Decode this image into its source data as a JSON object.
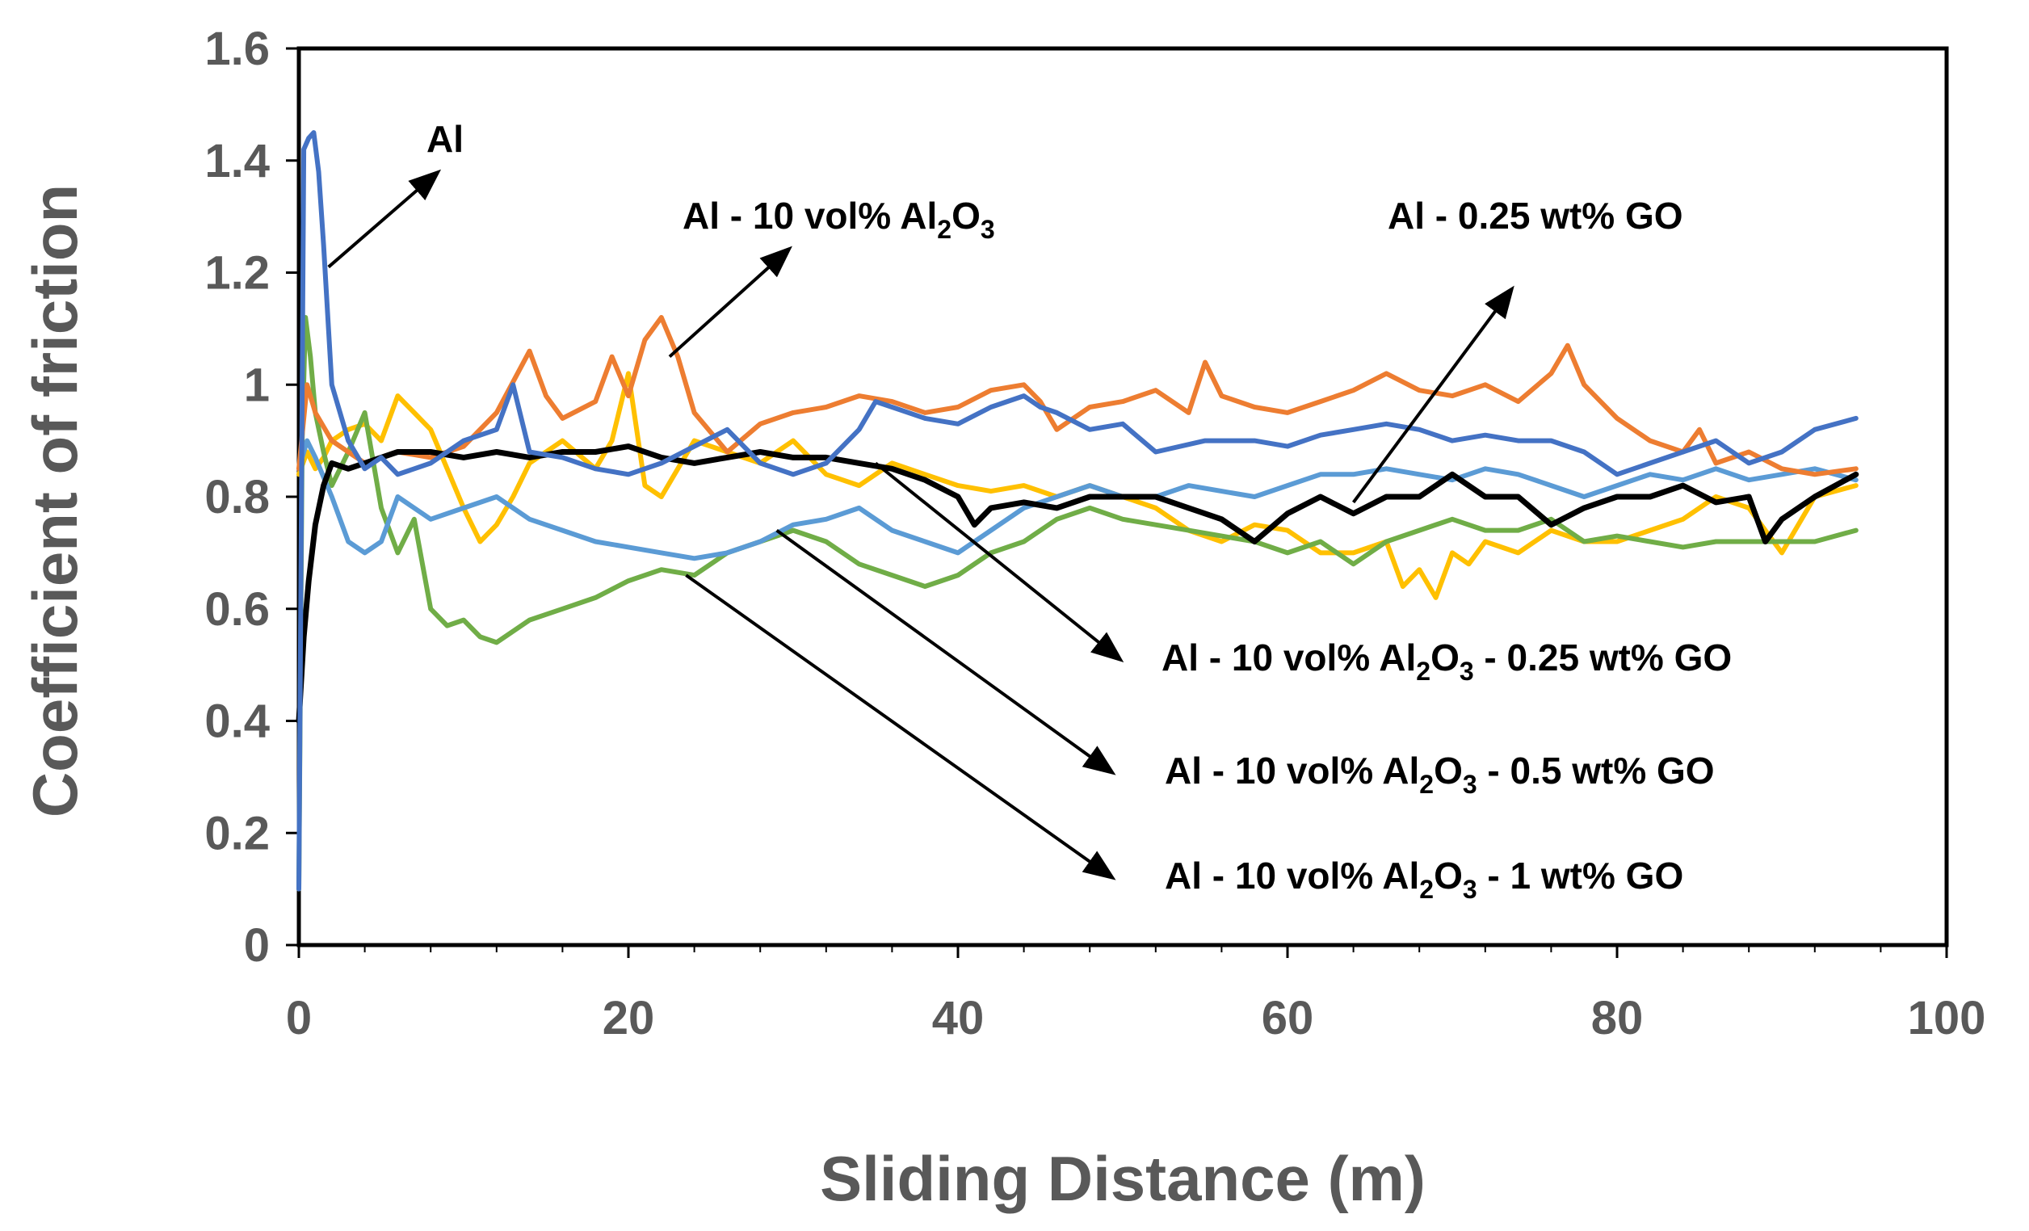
{
  "chart_data": {
    "type": "line",
    "title": "",
    "xlabel": "Sliding Distance (m)",
    "ylabel": "Coefficient of friction",
    "xlim": [
      0,
      100
    ],
    "ylim": [
      0,
      1.6
    ],
    "x_ticks": [
      0,
      20,
      40,
      60,
      80,
      100
    ],
    "x_tick_labels": [
      "0",
      "20",
      "40",
      "60",
      "80",
      "100"
    ],
    "y_ticks": [
      0,
      0.2,
      0.4,
      0.6,
      0.8,
      1.0,
      1.2,
      1.4,
      1.6
    ],
    "y_tick_labels": [
      "0",
      "0.2",
      "0.4",
      "0.6",
      "0.8",
      "1",
      "1.2",
      "1.4",
      "1.6"
    ],
    "grid": false,
    "series": [
      {
        "name": "Al",
        "color": "#4472C4",
        "x": [
          0,
          0.3,
          0.6,
          0.9,
          1.2,
          1.5,
          1.8,
          2,
          2.5,
          3,
          4,
          5,
          6,
          8,
          10,
          12,
          13,
          14,
          16,
          18,
          20,
          22,
          24,
          26,
          28,
          30,
          32,
          34,
          35,
          36,
          38,
          40,
          42,
          44,
          45,
          46,
          48,
          50,
          52,
          55,
          58,
          60,
          62,
          64,
          66,
          68,
          70,
          72,
          74,
          76,
          78,
          80,
          82,
          84,
          86,
          88,
          90,
          92,
          94.5
        ],
        "y": [
          0.1,
          1.42,
          1.44,
          1.45,
          1.38,
          1.25,
          1.1,
          1.0,
          0.95,
          0.9,
          0.85,
          0.87,
          0.84,
          0.86,
          0.9,
          0.92,
          1.0,
          0.88,
          0.87,
          0.85,
          0.84,
          0.86,
          0.89,
          0.92,
          0.86,
          0.84,
          0.86,
          0.92,
          0.97,
          0.96,
          0.94,
          0.93,
          0.96,
          0.98,
          0.96,
          0.95,
          0.92,
          0.93,
          0.88,
          0.9,
          0.9,
          0.89,
          0.91,
          0.92,
          0.93,
          0.92,
          0.9,
          0.91,
          0.9,
          0.9,
          0.88,
          0.84,
          0.86,
          0.88,
          0.9,
          0.86,
          0.88,
          0.92,
          0.94
        ]
      },
      {
        "name": "Al - 10 vol% Al2O3",
        "color": "#ED7D31",
        "x": [
          0,
          0.5,
          1,
          2,
          3,
          4,
          6,
          8,
          10,
          12,
          14,
          15,
          16,
          18,
          19,
          20,
          21,
          22,
          23,
          24,
          26,
          28,
          30,
          32,
          34,
          36,
          38,
          40,
          42,
          44,
          45,
          46,
          48,
          50,
          52,
          54,
          55,
          56,
          58,
          60,
          62,
          64,
          66,
          68,
          70,
          72,
          74,
          76,
          77,
          78,
          80,
          82,
          84,
          85,
          86,
          88,
          90,
          92,
          94.5
        ],
        "y": [
          0.85,
          1.0,
          0.95,
          0.9,
          0.88,
          0.86,
          0.88,
          0.87,
          0.89,
          0.95,
          1.06,
          0.98,
          0.94,
          0.97,
          1.05,
          0.98,
          1.08,
          1.12,
          1.05,
          0.95,
          0.88,
          0.93,
          0.95,
          0.96,
          0.98,
          0.97,
          0.95,
          0.96,
          0.99,
          1.0,
          0.97,
          0.92,
          0.96,
          0.97,
          0.99,
          0.95,
          1.04,
          0.98,
          0.96,
          0.95,
          0.97,
          0.99,
          1.02,
          0.99,
          0.98,
          1.0,
          0.97,
          1.02,
          1.07,
          1.0,
          0.94,
          0.9,
          0.88,
          0.92,
          0.86,
          0.88,
          0.85,
          0.84,
          0.85
        ]
      },
      {
        "name": "Al - 0.25 wt% GO",
        "color": "#000000",
        "x": [
          0,
          0.3,
          0.6,
          1,
          1.5,
          2,
          3,
          4,
          5,
          6,
          8,
          10,
          12,
          14,
          16,
          18,
          20,
          22,
          24,
          26,
          28,
          30,
          32,
          34,
          36,
          38,
          40,
          41,
          42,
          44,
          46,
          48,
          50,
          52,
          54,
          56,
          58,
          60,
          62,
          64,
          66,
          68,
          70,
          72,
          74,
          76,
          78,
          80,
          82,
          84,
          86,
          88,
          89,
          90,
          92,
          94.5
        ],
        "y": [
          0.4,
          0.55,
          0.65,
          0.75,
          0.82,
          0.86,
          0.85,
          0.86,
          0.87,
          0.88,
          0.88,
          0.87,
          0.88,
          0.87,
          0.88,
          0.88,
          0.89,
          0.87,
          0.86,
          0.87,
          0.88,
          0.87,
          0.87,
          0.86,
          0.85,
          0.83,
          0.8,
          0.75,
          0.78,
          0.79,
          0.78,
          0.8,
          0.8,
          0.8,
          0.78,
          0.76,
          0.72,
          0.77,
          0.8,
          0.77,
          0.8,
          0.8,
          0.84,
          0.8,
          0.8,
          0.75,
          0.78,
          0.8,
          0.8,
          0.82,
          0.79,
          0.8,
          0.72,
          0.76,
          0.8,
          0.84
        ]
      },
      {
        "name": "Al - 10 vol% Al2O3 - 0.25 wt% GO",
        "color": "#FFC000",
        "x": [
          0,
          0.5,
          1,
          1.5,
          2,
          3,
          4,
          5,
          6,
          7,
          8,
          9,
          10,
          11,
          12,
          13,
          14,
          15,
          16,
          18,
          19,
          20,
          21,
          22,
          23,
          24,
          26,
          28,
          30,
          32,
          34,
          36,
          38,
          40,
          42,
          44,
          46,
          48,
          50,
          52,
          54,
          56,
          58,
          60,
          62,
          64,
          66,
          67,
          68,
          69,
          70,
          71,
          72,
          74,
          76,
          78,
          80,
          82,
          84,
          86,
          88,
          90,
          92,
          94.5
        ],
        "y": [
          0.84,
          0.88,
          0.85,
          0.87,
          0.9,
          0.92,
          0.93,
          0.9,
          0.98,
          0.95,
          0.92,
          0.85,
          0.78,
          0.72,
          0.75,
          0.8,
          0.86,
          0.88,
          0.9,
          0.85,
          0.9,
          1.02,
          0.82,
          0.8,
          0.85,
          0.9,
          0.88,
          0.86,
          0.9,
          0.84,
          0.82,
          0.86,
          0.84,
          0.82,
          0.81,
          0.82,
          0.8,
          0.82,
          0.8,
          0.78,
          0.74,
          0.72,
          0.75,
          0.74,
          0.7,
          0.7,
          0.72,
          0.64,
          0.67,
          0.62,
          0.7,
          0.68,
          0.72,
          0.7,
          0.74,
          0.72,
          0.72,
          0.74,
          0.76,
          0.8,
          0.78,
          0.7,
          0.8,
          0.82
        ]
      },
      {
        "name": "Al - 10 vol% Al2O3 - 0.5 wt% GO",
        "color": "#5B9BD5",
        "x": [
          0,
          0.5,
          1,
          2,
          3,
          4,
          5,
          6,
          8,
          10,
          12,
          14,
          16,
          18,
          20,
          22,
          24,
          26,
          28,
          30,
          32,
          34,
          36,
          38,
          40,
          42,
          44,
          46,
          48,
          50,
          52,
          54,
          56,
          58,
          60,
          62,
          64,
          66,
          68,
          70,
          72,
          74,
          76,
          78,
          80,
          82,
          84,
          86,
          88,
          90,
          92,
          94.5
        ],
        "y": [
          0.85,
          0.9,
          0.87,
          0.8,
          0.72,
          0.7,
          0.72,
          0.8,
          0.76,
          0.78,
          0.8,
          0.76,
          0.74,
          0.72,
          0.71,
          0.7,
          0.69,
          0.7,
          0.72,
          0.75,
          0.76,
          0.78,
          0.74,
          0.72,
          0.7,
          0.74,
          0.78,
          0.8,
          0.82,
          0.8,
          0.8,
          0.82,
          0.81,
          0.8,
          0.82,
          0.84,
          0.84,
          0.85,
          0.84,
          0.83,
          0.85,
          0.84,
          0.82,
          0.8,
          0.82,
          0.84,
          0.83,
          0.85,
          0.83,
          0.84,
          0.85,
          0.83
        ]
      },
      {
        "name": "Al - 10 vol% Al2O3 - 1 wt% GO",
        "color": "#70AD47",
        "x": [
          0,
          0.2,
          0.4,
          0.7,
          1,
          1.5,
          2,
          3,
          4,
          5,
          6,
          7,
          8,
          9,
          10,
          11,
          12,
          13,
          14,
          16,
          18,
          20,
          22,
          24,
          26,
          28,
          30,
          32,
          34,
          36,
          38,
          40,
          42,
          44,
          46,
          48,
          50,
          52,
          54,
          56,
          58,
          60,
          62,
          64,
          66,
          68,
          70,
          72,
          74,
          76,
          78,
          80,
          82,
          84,
          86,
          88,
          90,
          92,
          94.5
        ],
        "y": [
          0.1,
          0.9,
          1.12,
          1.05,
          0.95,
          0.88,
          0.82,
          0.88,
          0.95,
          0.78,
          0.7,
          0.76,
          0.6,
          0.57,
          0.58,
          0.55,
          0.54,
          0.56,
          0.58,
          0.6,
          0.62,
          0.65,
          0.67,
          0.66,
          0.7,
          0.72,
          0.74,
          0.72,
          0.68,
          0.66,
          0.64,
          0.66,
          0.7,
          0.72,
          0.76,
          0.78,
          0.76,
          0.75,
          0.74,
          0.73,
          0.72,
          0.7,
          0.72,
          0.68,
          0.72,
          0.74,
          0.76,
          0.74,
          0.74,
          0.76,
          0.72,
          0.73,
          0.72,
          0.71,
          0.72,
          0.72,
          0.72,
          0.72,
          0.74
        ]
      }
    ],
    "annotations": [
      {
        "id": "al",
        "text": "Al",
        "sub": "",
        "rest": ""
      },
      {
        "id": "al2o3",
        "text": "Al - 10 vol% Al",
        "sub": "2",
        "rest": "O",
        "sub2": "3",
        "rest2": ""
      },
      {
        "id": "go025",
        "text": "Al - 0.25 wt% GO",
        "sub": "",
        "rest": ""
      },
      {
        "id": "hyb025",
        "text": "Al - 10 vol% Al",
        "sub": "2",
        "rest": "O",
        "sub2": "3",
        "rest2": " - 0.25 wt% GO"
      },
      {
        "id": "hyb05",
        "text": "Al - 10 vol% Al",
        "sub": "2",
        "rest": "O",
        "sub2": "3",
        "rest2": " - 0.5 wt% GO"
      },
      {
        "id": "hyb1",
        "text": "Al - 10 vol% Al",
        "sub": "2",
        "rest": "O",
        "sub2": "3",
        "rest2": " - 1 wt% GO"
      }
    ]
  }
}
